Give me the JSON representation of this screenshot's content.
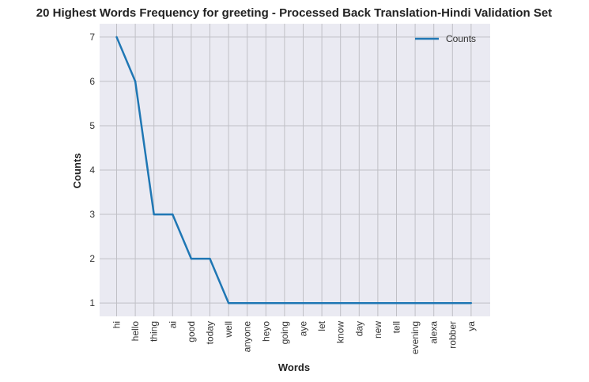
{
  "chart_data": {
    "type": "line",
    "title": "20 Highest Words Frequency for greeting - Processed Back Translation-Hindi Validation Set",
    "xlabel": "Words",
    "ylabel": "Counts",
    "categories": [
      "hi",
      "hello",
      "thing",
      "ai",
      "good",
      "today",
      "well",
      "anyone",
      "heyo",
      "going",
      "aye",
      "let",
      "know",
      "day",
      "new",
      "tell",
      "evening",
      "alexa",
      "robber",
      "ya"
    ],
    "series": [
      {
        "name": "Counts",
        "values": [
          7,
          6,
          3,
          3,
          2,
          2,
          1,
          1,
          1,
          1,
          1,
          1,
          1,
          1,
          1,
          1,
          1,
          1,
          1,
          1
        ],
        "color": "#1f77b4"
      }
    ],
    "yticks": [
      1,
      2,
      3,
      4,
      5,
      6,
      7
    ],
    "ylim": [
      0.7,
      7.3
    ],
    "grid": true,
    "legend": "top-right",
    "background": "#eaeaf2",
    "grid_color": "#c0c0c6"
  }
}
